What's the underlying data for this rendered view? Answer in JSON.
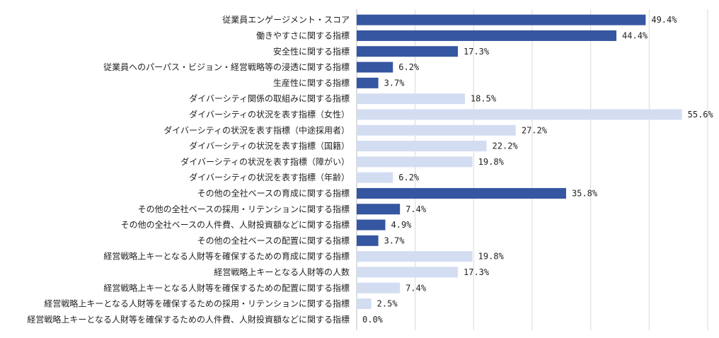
{
  "chart_data": {
    "type": "bar",
    "orientation": "horizontal",
    "title": "",
    "xlabel": "",
    "ylabel": "",
    "xlim": [
      0,
      60
    ],
    "grid": true,
    "categories": [
      "従業員エンゲージメント・スコア",
      "働きやすさに関する指標",
      "安全性に関する指標",
      "従業員へのパーパス・ビジョン・経営戦略等の浸透に関する指標",
      "生産性に関する指標",
      "ダイバーシティ関係の取組みに関する指標",
      "ダイバーシティの状況を表す指標（女性）",
      "ダイバーシティの状況を表す指標（中途採用者）",
      "ダイバーシティの状況を表す指標（国籍）",
      "ダイバーシティの状況を表す指標（障がい）",
      "ダイバーシティの状況を表す指標（年齢）",
      "その他の全社ベースの育成に関する指標",
      "その他の全社ベースの採用・リテンションに関する指標",
      "その他の全社ベースの人件費、人財投資額などに関する指標",
      "その他の全社ベースの配置に関する指標",
      "経営戦略上キーとなる人財等を確保するための育成に関する指標",
      "経営戦略上キーとなる人財等の人数",
      "経営戦略上キーとなる人財等を確保するための配置に関する指標",
      "経営戦略上キーとなる人財等を確保するための採用・リテンションに関する指標",
      "経営戦略上キーとなる人財等を確保するための人件費、人財投資額などに関する指標"
    ],
    "values": [
      49.4,
      44.4,
      17.3,
      6.2,
      3.7,
      18.5,
      55.6,
      27.2,
      22.2,
      19.8,
      6.2,
      35.8,
      7.4,
      4.9,
      3.7,
      19.8,
      17.3,
      7.4,
      2.5,
      0.0
    ],
    "value_labels": [
      "49.4%",
      "44.4%",
      "17.3%",
      "6.2%",
      "3.7%",
      "18.5%",
      "55.6%",
      "27.2%",
      "22.2%",
      "19.8%",
      "6.2%",
      "35.8%",
      "7.4%",
      "4.9%",
      "3.7%",
      "19.8%",
      "17.3%",
      "7.4%",
      "2.5%",
      "0.0%"
    ],
    "bar_colors": [
      "#3556a0",
      "#3556a0",
      "#3556a0",
      "#3556a0",
      "#3556a0",
      "#d3ddf2",
      "#d3ddf2",
      "#d3ddf2",
      "#d3ddf2",
      "#d3ddf2",
      "#d3ddf2",
      "#3556a0",
      "#3556a0",
      "#3556a0",
      "#3556a0",
      "#d3ddf2",
      "#d3ddf2",
      "#d3ddf2",
      "#d3ddf2",
      "#d3ddf2"
    ]
  }
}
